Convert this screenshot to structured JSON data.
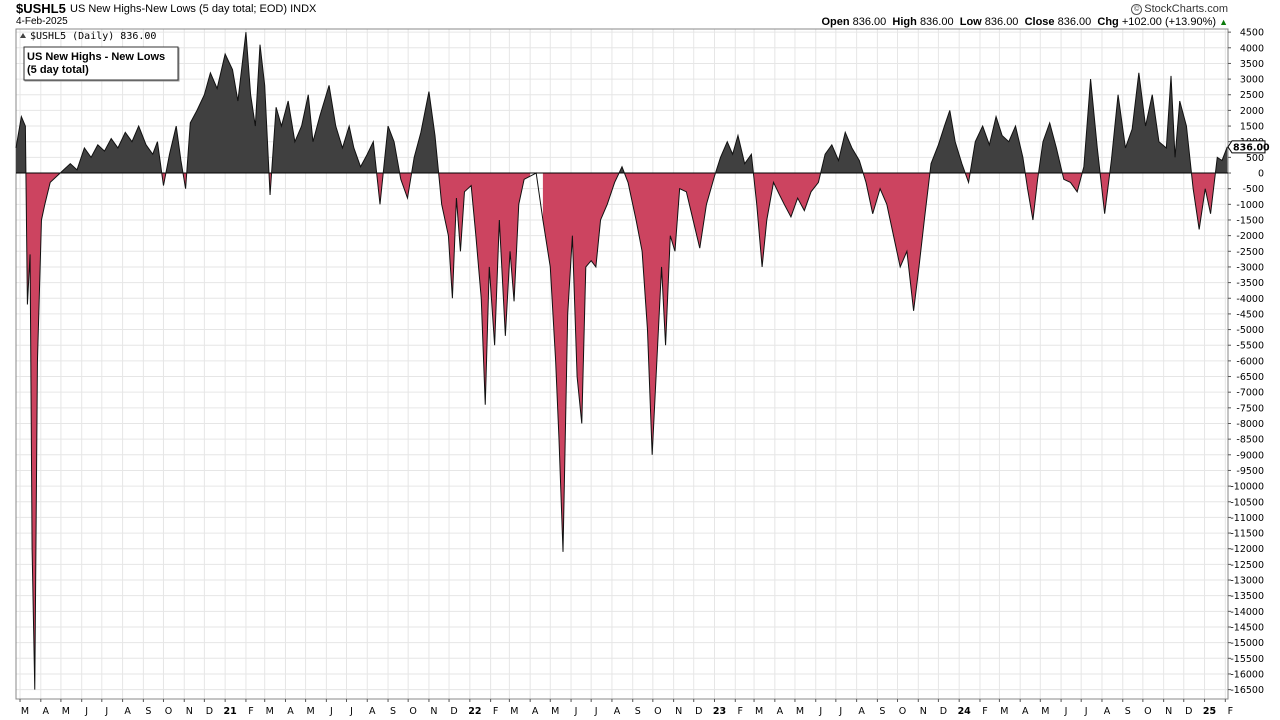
{
  "header": {
    "symbol": "$USHL5",
    "description": "US New Highs-New Lows (5 day total; EOD)",
    "exchange": "INDX",
    "date": "4-Feb-2025",
    "brand": "StockCharts.com",
    "ohlc": {
      "open_label": "Open",
      "open": "836.00",
      "high_label": "High",
      "high": "836.00",
      "low_label": "Low",
      "low": "836.00",
      "close_label": "Close",
      "close": "836.00",
      "chg_label": "Chg",
      "chg": "+102.00 (+13.90%)"
    }
  },
  "chart_data": {
    "type": "area",
    "ticker_label": "$USHL5 (Daily) 836.00",
    "legend": [
      "US New Highs - New Lows",
      "(5 day total)"
    ],
    "last_value": 836,
    "last_value_label": "836.00",
    "ylim": [
      -16800,
      4600
    ],
    "yticks": [
      4500,
      4000,
      3500,
      3000,
      2500,
      2000,
      1500,
      1000,
      500,
      0,
      -500,
      -1000,
      -1500,
      -2000,
      -2500,
      -3000,
      -3500,
      -4000,
      -4500,
      -5000,
      -5500,
      -6000,
      -6500,
      -7000,
      -7500,
      -8000,
      -8500,
      -9000,
      -9500,
      -10000,
      -10500,
      -11000,
      -11500,
      -12000,
      -12500,
      -13000,
      -13500,
      -14000,
      -14500,
      -15000,
      -15500,
      -16000,
      -16500
    ],
    "xlim": [
      "2020-02-24",
      "2025-02-05"
    ],
    "xticks": [
      {
        "date": "2020-03-01",
        "label": "M"
      },
      {
        "date": "2020-04-01",
        "label": "A"
      },
      {
        "date": "2020-05-01",
        "label": "M"
      },
      {
        "date": "2020-06-01",
        "label": "J"
      },
      {
        "date": "2020-07-01",
        "label": "J"
      },
      {
        "date": "2020-08-01",
        "label": "A"
      },
      {
        "date": "2020-09-01",
        "label": "S"
      },
      {
        "date": "2020-10-01",
        "label": "O"
      },
      {
        "date": "2020-11-01",
        "label": "N"
      },
      {
        "date": "2020-12-01",
        "label": "D"
      },
      {
        "date": "2021-01-01",
        "label": "21"
      },
      {
        "date": "2021-02-01",
        "label": "F"
      },
      {
        "date": "2021-03-01",
        "label": "M"
      },
      {
        "date": "2021-04-01",
        "label": "A"
      },
      {
        "date": "2021-05-01",
        "label": "M"
      },
      {
        "date": "2021-06-01",
        "label": "J"
      },
      {
        "date": "2021-07-01",
        "label": "J"
      },
      {
        "date": "2021-08-01",
        "label": "A"
      },
      {
        "date": "2021-09-01",
        "label": "S"
      },
      {
        "date": "2021-10-01",
        "label": "O"
      },
      {
        "date": "2021-11-01",
        "label": "N"
      },
      {
        "date": "2021-12-01",
        "label": "D"
      },
      {
        "date": "2022-01-01",
        "label": "22"
      },
      {
        "date": "2022-02-01",
        "label": "F"
      },
      {
        "date": "2022-03-01",
        "label": "M"
      },
      {
        "date": "2022-04-01",
        "label": "A"
      },
      {
        "date": "2022-05-01",
        "label": "M"
      },
      {
        "date": "2022-06-01",
        "label": "J"
      },
      {
        "date": "2022-07-01",
        "label": "J"
      },
      {
        "date": "2022-08-01",
        "label": "A"
      },
      {
        "date": "2022-09-01",
        "label": "S"
      },
      {
        "date": "2022-10-01",
        "label": "O"
      },
      {
        "date": "2022-11-01",
        "label": "N"
      },
      {
        "date": "2022-12-01",
        "label": "D"
      },
      {
        "date": "2023-01-01",
        "label": "23"
      },
      {
        "date": "2023-02-01",
        "label": "F"
      },
      {
        "date": "2023-03-01",
        "label": "M"
      },
      {
        "date": "2023-04-01",
        "label": "A"
      },
      {
        "date": "2023-05-01",
        "label": "M"
      },
      {
        "date": "2023-06-01",
        "label": "J"
      },
      {
        "date": "2023-07-01",
        "label": "J"
      },
      {
        "date": "2023-08-01",
        "label": "A"
      },
      {
        "date": "2023-09-01",
        "label": "S"
      },
      {
        "date": "2023-10-01",
        "label": "O"
      },
      {
        "date": "2023-11-01",
        "label": "N"
      },
      {
        "date": "2023-12-01",
        "label": "D"
      },
      {
        "date": "2024-01-01",
        "label": "24"
      },
      {
        "date": "2024-02-01",
        "label": "F"
      },
      {
        "date": "2024-03-01",
        "label": "M"
      },
      {
        "date": "2024-04-01",
        "label": "A"
      },
      {
        "date": "2024-05-01",
        "label": "M"
      },
      {
        "date": "2024-06-01",
        "label": "J"
      },
      {
        "date": "2024-07-01",
        "label": "J"
      },
      {
        "date": "2024-08-01",
        "label": "A"
      },
      {
        "date": "2024-09-01",
        "label": "S"
      },
      {
        "date": "2024-10-01",
        "label": "O"
      },
      {
        "date": "2024-11-01",
        "label": "N"
      },
      {
        "date": "2024-12-01",
        "label": "D"
      },
      {
        "date": "2025-01-01",
        "label": "25"
      },
      {
        "date": "2025-02-01",
        "label": "F"
      }
    ],
    "colors": {
      "positive": "#404040",
      "negative": "#cc4460",
      "outline": "#111111",
      "grid": "#e6e6e6"
    },
    "grid": true,
    "legend_position": "top-left",
    "series": [
      {
        "points": [
          [
            "2020-02-24",
            800
          ],
          [
            "2020-03-03",
            1800
          ],
          [
            "2020-03-09",
            1500
          ],
          [
            "2020-03-12",
            -4200
          ],
          [
            "2020-03-16",
            -2600
          ],
          [
            "2020-03-19",
            -12000
          ],
          [
            "2020-03-23",
            -16500
          ],
          [
            "2020-03-27",
            -6000
          ],
          [
            "2020-04-02",
            -1500
          ],
          [
            "2020-04-07",
            -1000
          ],
          [
            "2020-04-15",
            -300
          ],
          [
            "2020-04-25",
            -100
          ],
          [
            "2020-05-05",
            100
          ],
          [
            "2020-05-15",
            300
          ],
          [
            "2020-05-25",
            100
          ],
          [
            "2020-06-05",
            800
          ],
          [
            "2020-06-15",
            500
          ],
          [
            "2020-06-25",
            900
          ],
          [
            "2020-07-05",
            700
          ],
          [
            "2020-07-15",
            1100
          ],
          [
            "2020-07-25",
            800
          ],
          [
            "2020-08-05",
            1300
          ],
          [
            "2020-08-15",
            1000
          ],
          [
            "2020-08-25",
            1500
          ],
          [
            "2020-09-05",
            900
          ],
          [
            "2020-09-15",
            600
          ],
          [
            "2020-09-22",
            1000
          ],
          [
            "2020-10-01",
            -400
          ],
          [
            "2020-10-10",
            600
          ],
          [
            "2020-10-20",
            1500
          ],
          [
            "2020-10-27",
            400
          ],
          [
            "2020-11-03",
            -500
          ],
          [
            "2020-11-10",
            1600
          ],
          [
            "2020-11-20",
            2000
          ],
          [
            "2020-12-01",
            2500
          ],
          [
            "2020-12-10",
            3200
          ],
          [
            "2020-12-20",
            2700
          ],
          [
            "2021-01-01",
            3800
          ],
          [
            "2021-01-12",
            3300
          ],
          [
            "2021-01-20",
            2300
          ],
          [
            "2021-02-01",
            4500
          ],
          [
            "2021-02-08",
            2500
          ],
          [
            "2021-02-15",
            1500
          ],
          [
            "2021-02-22",
            4100
          ],
          [
            "2021-03-01",
            2800
          ],
          [
            "2021-03-09",
            -700
          ],
          [
            "2021-03-18",
            2100
          ],
          [
            "2021-03-26",
            1500
          ],
          [
            "2021-04-05",
            2300
          ],
          [
            "2021-04-15",
            1000
          ],
          [
            "2021-04-25",
            1500
          ],
          [
            "2021-05-05",
            2500
          ],
          [
            "2021-05-12",
            1000
          ],
          [
            "2021-05-22",
            1800
          ],
          [
            "2021-06-05",
            2800
          ],
          [
            "2021-06-15",
            1500
          ],
          [
            "2021-06-25",
            800
          ],
          [
            "2021-07-05",
            1500
          ],
          [
            "2021-07-12",
            800
          ],
          [
            "2021-07-22",
            200
          ],
          [
            "2021-08-01",
            600
          ],
          [
            "2021-08-10",
            1000
          ],
          [
            "2021-08-20",
            -1000
          ],
          [
            "2021-09-01",
            1500
          ],
          [
            "2021-09-10",
            1000
          ],
          [
            "2021-09-20",
            -200
          ],
          [
            "2021-09-30",
            -800
          ],
          [
            "2021-10-10",
            500
          ],
          [
            "2021-10-20",
            1300
          ],
          [
            "2021-11-01",
            2600
          ],
          [
            "2021-11-10",
            1200
          ],
          [
            "2021-11-20",
            -1000
          ],
          [
            "2021-11-30",
            -2000
          ],
          [
            "2021-12-06",
            -4000
          ],
          [
            "2021-12-12",
            -800
          ],
          [
            "2021-12-18",
            -2500
          ],
          [
            "2021-12-24",
            -600
          ],
          [
            "2022-01-03",
            -400
          ],
          [
            "2022-01-10",
            -2000
          ],
          [
            "2022-01-18",
            -4000
          ],
          [
            "2022-01-24",
            -7400
          ],
          [
            "2022-01-30",
            -3000
          ],
          [
            "2022-02-07",
            -5500
          ],
          [
            "2022-02-14",
            -1500
          ],
          [
            "2022-02-23",
            -5200
          ],
          [
            "2022-03-02",
            -2500
          ],
          [
            "2022-03-08",
            -4100
          ],
          [
            "2022-03-15",
            -1000
          ],
          [
            "2022-03-23",
            -200
          ],
          [
            "2022-04-01",
            -100
          ],
          [
            "2022-04-10",
            0
          ],
          [
            "2022-04-20",
            -1500
          ],
          [
            "2022-05-01",
            -3000
          ],
          [
            "2022-05-09",
            -6000
          ],
          [
            "2022-05-14",
            -8500
          ],
          [
            "2022-05-20",
            -12100
          ],
          [
            "2022-05-27",
            -4500
          ],
          [
            "2022-06-03",
            -2000
          ],
          [
            "2022-06-10",
            -6500
          ],
          [
            "2022-06-17",
            -8000
          ],
          [
            "2022-06-23",
            -3000
          ],
          [
            "2022-07-01",
            -2800
          ],
          [
            "2022-07-08",
            -3000
          ],
          [
            "2022-07-15",
            -1500
          ],
          [
            "2022-07-25",
            -1000
          ],
          [
            "2022-08-05",
            -300
          ],
          [
            "2022-08-16",
            200
          ],
          [
            "2022-08-25",
            -300
          ],
          [
            "2022-09-06",
            -1500
          ],
          [
            "2022-09-15",
            -2500
          ],
          [
            "2022-09-23",
            -5000
          ],
          [
            "2022-09-30",
            -9000
          ],
          [
            "2022-10-07",
            -6000
          ],
          [
            "2022-10-14",
            -3000
          ],
          [
            "2022-10-20",
            -5500
          ],
          [
            "2022-10-27",
            -2000
          ],
          [
            "2022-11-03",
            -2500
          ],
          [
            "2022-11-10",
            -500
          ],
          [
            "2022-11-20",
            -600
          ],
          [
            "2022-11-30",
            -1500
          ],
          [
            "2022-12-10",
            -2400
          ],
          [
            "2022-12-20",
            -1000
          ],
          [
            "2023-01-01",
            -100
          ],
          [
            "2023-01-10",
            500
          ],
          [
            "2023-01-20",
            1000
          ],
          [
            "2023-01-28",
            600
          ],
          [
            "2023-02-05",
            1200
          ],
          [
            "2023-02-15",
            300
          ],
          [
            "2023-02-25",
            600
          ],
          [
            "2023-03-05",
            -1000
          ],
          [
            "2023-03-13",
            -3000
          ],
          [
            "2023-03-20",
            -1500
          ],
          [
            "2023-03-30",
            -300
          ],
          [
            "2023-04-08",
            -700
          ],
          [
            "2023-04-15",
            -1000
          ],
          [
            "2023-04-25",
            -1400
          ],
          [
            "2023-05-05",
            -800
          ],
          [
            "2023-05-15",
            -1200
          ],
          [
            "2023-05-25",
            -600
          ],
          [
            "2023-06-05",
            -300
          ],
          [
            "2023-06-15",
            600
          ],
          [
            "2023-06-25",
            900
          ],
          [
            "2023-07-05",
            400
          ],
          [
            "2023-07-15",
            1300
          ],
          [
            "2023-07-25",
            800
          ],
          [
            "2023-08-05",
            400
          ],
          [
            "2023-08-15",
            -300
          ],
          [
            "2023-08-25",
            -1300
          ],
          [
            "2023-09-05",
            -500
          ],
          [
            "2023-09-15",
            -1000
          ],
          [
            "2023-09-25",
            -2000
          ],
          [
            "2023-10-05",
            -3000
          ],
          [
            "2023-10-15",
            -2500
          ],
          [
            "2023-10-25",
            -4400
          ],
          [
            "2023-11-02",
            -3000
          ],
          [
            "2023-11-10",
            -1500
          ],
          [
            "2023-11-20",
            300
          ],
          [
            "2023-12-01",
            900
          ],
          [
            "2023-12-10",
            1500
          ],
          [
            "2023-12-18",
            2000
          ],
          [
            "2023-12-26",
            1000
          ],
          [
            "2024-01-05",
            300
          ],
          [
            "2024-01-15",
            -300
          ],
          [
            "2024-01-25",
            1000
          ],
          [
            "2024-02-05",
            1500
          ],
          [
            "2024-02-15",
            900
          ],
          [
            "2024-02-25",
            1800
          ],
          [
            "2024-03-05",
            1200
          ],
          [
            "2024-03-15",
            1000
          ],
          [
            "2024-03-25",
            1500
          ],
          [
            "2024-04-05",
            500
          ],
          [
            "2024-04-12",
            -500
          ],
          [
            "2024-04-20",
            -1500
          ],
          [
            "2024-04-27",
            -200
          ],
          [
            "2024-05-05",
            1000
          ],
          [
            "2024-05-15",
            1600
          ],
          [
            "2024-05-25",
            800
          ],
          [
            "2024-06-05",
            -200
          ],
          [
            "2024-06-15",
            -300
          ],
          [
            "2024-06-25",
            -600
          ],
          [
            "2024-07-05",
            200
          ],
          [
            "2024-07-15",
            3000
          ],
          [
            "2024-07-25",
            800
          ],
          [
            "2024-08-05",
            -1300
          ],
          [
            "2024-08-15",
            400
          ],
          [
            "2024-08-25",
            2500
          ],
          [
            "2024-09-05",
            800
          ],
          [
            "2024-09-15",
            1400
          ],
          [
            "2024-09-25",
            3200
          ],
          [
            "2024-10-05",
            1500
          ],
          [
            "2024-10-15",
            2500
          ],
          [
            "2024-10-25",
            1000
          ],
          [
            "2024-11-05",
            800
          ],
          [
            "2024-11-12",
            3100
          ],
          [
            "2024-11-18",
            500
          ],
          [
            "2024-11-25",
            2300
          ],
          [
            "2024-12-05",
            1500
          ],
          [
            "2024-12-15",
            -500
          ],
          [
            "2024-12-24",
            -1800
          ],
          [
            "2025-01-02",
            -500
          ],
          [
            "2025-01-10",
            -1300
          ],
          [
            "2025-01-20",
            500
          ],
          [
            "2025-01-27",
            400
          ],
          [
            "2025-02-04",
            836
          ]
        ]
      }
    ]
  }
}
